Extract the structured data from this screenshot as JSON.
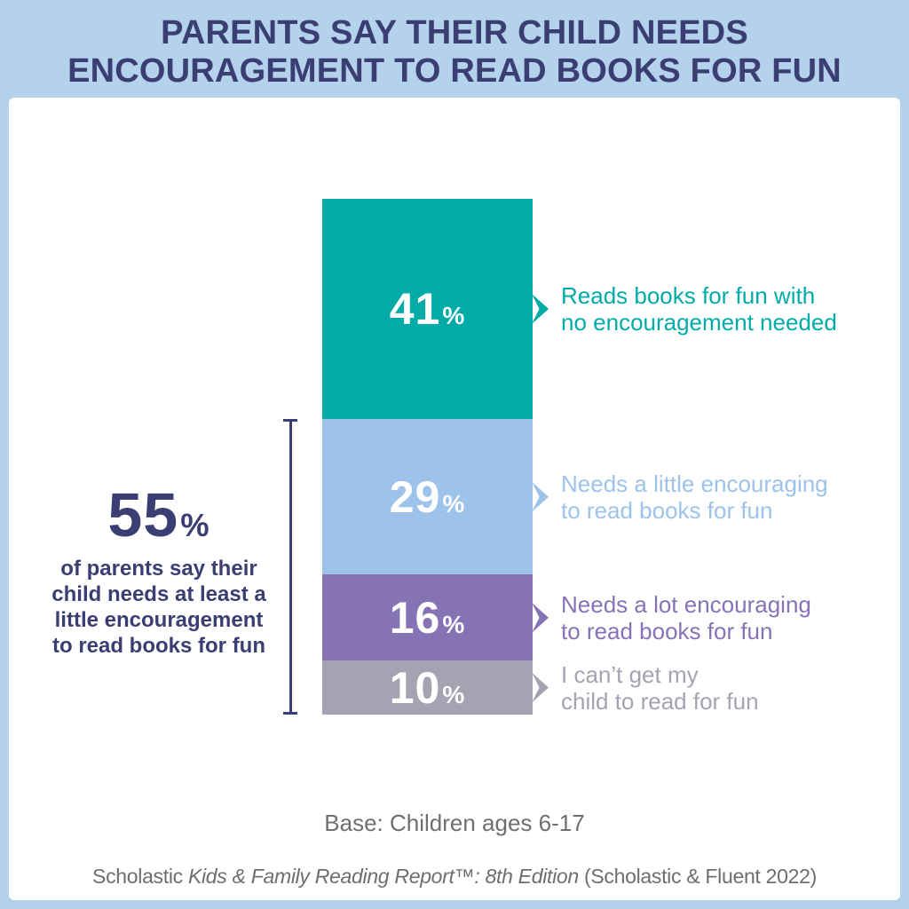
{
  "header": {
    "title_lines": [
      "PARENTS SAY THEIR CHILD NEEDS",
      "ENCOURAGEMENT TO READ BOOKS FOR FUN"
    ]
  },
  "chart_data": {
    "type": "bar",
    "subtype": "single-column-stacked",
    "title": "Parents say their child needs encouragement to read books for fun",
    "unit": "%",
    "categories": [
      "Reads books for fun with no encouragement needed",
      "Needs a little encouraging to read books for fun",
      "Needs a lot encouraging to read books for fun",
      "I can’t get my child to read for fun"
    ],
    "values": [
      41,
      29,
      16,
      10
    ],
    "segments": [
      {
        "value": 41,
        "display": "41",
        "label": "Reads books for fun with no encouragement needed",
        "label_lines": [
          "Reads books for fun with",
          "no encouragement needed"
        ],
        "color": "#00ABA8"
      },
      {
        "value": 29,
        "display": "29",
        "label": "Needs a little encouraging to read books for fun",
        "label_lines": [
          "Needs a little encouraging",
          "to read books for fun"
        ],
        "color": "#9DC3EA"
      },
      {
        "value": 16,
        "display": "16",
        "label": "Needs a lot encouraging to read books for fun",
        "label_lines": [
          "Needs a lot encouraging",
          "to read books for fun"
        ],
        "color": "#8673B5"
      },
      {
        "value": 10,
        "display": "10",
        "label": "I can’t get my child to read for fun",
        "label_lines": [
          "I can’t get my",
          "child to read for fun"
        ],
        "color": "#A5A2B2"
      }
    ],
    "callout": {
      "value": 55,
      "display": "55",
      "unit": "%",
      "text": "of parents say their child needs at least a little encouragement to read books for fun",
      "text_lines": [
        "of parents say their",
        "child needs at least a",
        "little encouragement",
        "to read books for fun"
      ],
      "covers_segments": [
        29,
        16,
        10
      ],
      "color": "#3B3E72"
    },
    "base_note": "Base: Children ages 6-17",
    "source": {
      "prefix": "Scholastic ",
      "italic": "Kids & Family Reading Report™: 8th Edition",
      "suffix": " (Scholastic & Fluent 2022)"
    },
    "legend_position": "right",
    "grid": false
  },
  "colors": {
    "background_band": "#B5D2EC",
    "panel": "#FFFFFF",
    "title_navy": "#3B3E72",
    "teal": "#00ABA8",
    "light_blue": "#9DC3EA",
    "purple": "#8673B5",
    "gray": "#A5A2B2",
    "note_gray": "#6E6F72"
  }
}
